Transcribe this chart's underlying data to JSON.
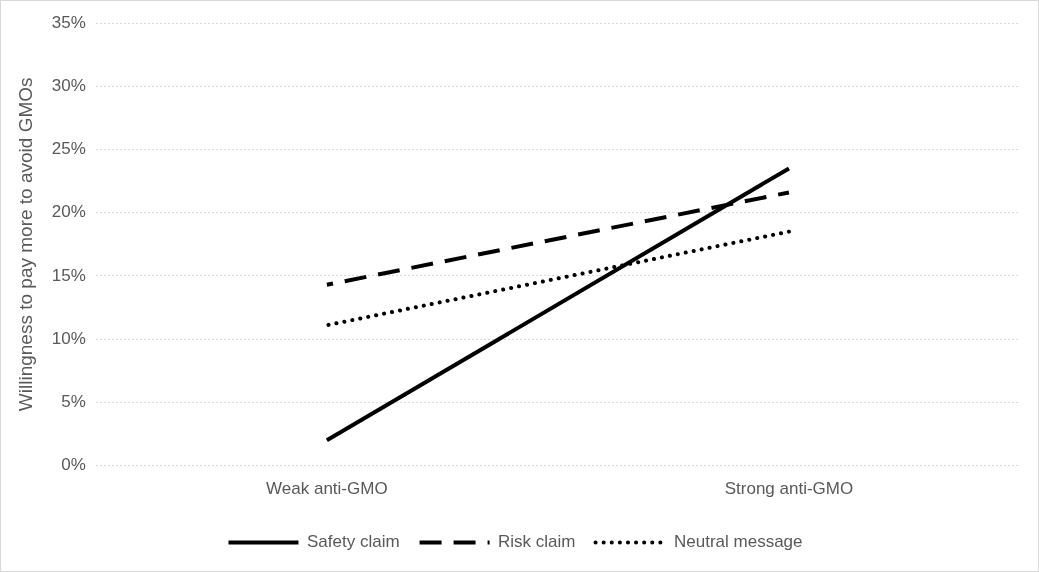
{
  "chart_data": {
    "type": "line",
    "ylabel": "Willingness to pay more to avoid GMOs",
    "categories": [
      "Weak anti-GMO",
      "Strong anti-GMO"
    ],
    "series": [
      {
        "name": "Safety claim",
        "color": "#000000",
        "values": [
          2,
          23.5
        ],
        "line_style": "solid"
      },
      {
        "name": "Risk claim",
        "color": "#000000",
        "values": [
          14.3,
          21.6
        ],
        "line_style": "dashed"
      },
      {
        "name": "Neutral message",
        "color": "#000000",
        "values": [
          11.1,
          18.5
        ],
        "line_style": "dotted"
      }
    ],
    "ylim": [
      0,
      35
    ],
    "yticks": [
      {
        "value": 0,
        "label": "0%"
      },
      {
        "value": 5,
        "label": "5%"
      },
      {
        "value": 10,
        "label": "10%"
      },
      {
        "value": 15,
        "label": "15%"
      },
      {
        "value": 20,
        "label": "20%"
      },
      {
        "value": 25,
        "label": "25%"
      },
      {
        "value": 30,
        "label": "30%"
      },
      {
        "value": 35,
        "label": "35%"
      }
    ],
    "grid": "y",
    "legend": "bottom",
    "marker": "none"
  }
}
